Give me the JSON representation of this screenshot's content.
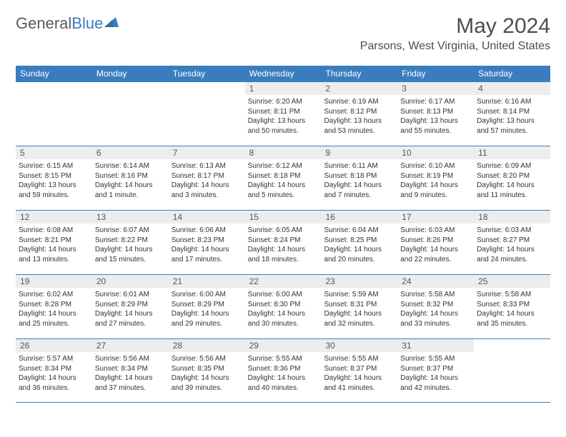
{
  "logo": {
    "text1": "General",
    "text2": "Blue",
    "shape_color": "#3a7dbf"
  },
  "title": "May 2024",
  "location": "Parsons, West Virginia, United States",
  "colors": {
    "header_bg": "#3a7dbf",
    "border": "#3a7dbf",
    "daynum_bg": "#ededed",
    "text": "#333333"
  },
  "day_names": [
    "Sunday",
    "Monday",
    "Tuesday",
    "Wednesday",
    "Thursday",
    "Friday",
    "Saturday"
  ],
  "weeks": [
    [
      {
        "empty": true
      },
      {
        "empty": true
      },
      {
        "empty": true
      },
      {
        "n": "1",
        "sr": "Sunrise: 6:20 AM",
        "ss": "Sunset: 8:11 PM",
        "dl": "Daylight: 13 hours and 50 minutes."
      },
      {
        "n": "2",
        "sr": "Sunrise: 6:19 AM",
        "ss": "Sunset: 8:12 PM",
        "dl": "Daylight: 13 hours and 53 minutes."
      },
      {
        "n": "3",
        "sr": "Sunrise: 6:17 AM",
        "ss": "Sunset: 8:13 PM",
        "dl": "Daylight: 13 hours and 55 minutes."
      },
      {
        "n": "4",
        "sr": "Sunrise: 6:16 AM",
        "ss": "Sunset: 8:14 PM",
        "dl": "Daylight: 13 hours and 57 minutes."
      }
    ],
    [
      {
        "n": "5",
        "sr": "Sunrise: 6:15 AM",
        "ss": "Sunset: 8:15 PM",
        "dl": "Daylight: 13 hours and 59 minutes."
      },
      {
        "n": "6",
        "sr": "Sunrise: 6:14 AM",
        "ss": "Sunset: 8:16 PM",
        "dl": "Daylight: 14 hours and 1 minute."
      },
      {
        "n": "7",
        "sr": "Sunrise: 6:13 AM",
        "ss": "Sunset: 8:17 PM",
        "dl": "Daylight: 14 hours and 3 minutes."
      },
      {
        "n": "8",
        "sr": "Sunrise: 6:12 AM",
        "ss": "Sunset: 8:18 PM",
        "dl": "Daylight: 14 hours and 5 minutes."
      },
      {
        "n": "9",
        "sr": "Sunrise: 6:11 AM",
        "ss": "Sunset: 8:18 PM",
        "dl": "Daylight: 14 hours and 7 minutes."
      },
      {
        "n": "10",
        "sr": "Sunrise: 6:10 AM",
        "ss": "Sunset: 8:19 PM",
        "dl": "Daylight: 14 hours and 9 minutes."
      },
      {
        "n": "11",
        "sr": "Sunrise: 6:09 AM",
        "ss": "Sunset: 8:20 PM",
        "dl": "Daylight: 14 hours and 11 minutes."
      }
    ],
    [
      {
        "n": "12",
        "sr": "Sunrise: 6:08 AM",
        "ss": "Sunset: 8:21 PM",
        "dl": "Daylight: 14 hours and 13 minutes."
      },
      {
        "n": "13",
        "sr": "Sunrise: 6:07 AM",
        "ss": "Sunset: 8:22 PM",
        "dl": "Daylight: 14 hours and 15 minutes."
      },
      {
        "n": "14",
        "sr": "Sunrise: 6:06 AM",
        "ss": "Sunset: 8:23 PM",
        "dl": "Daylight: 14 hours and 17 minutes."
      },
      {
        "n": "15",
        "sr": "Sunrise: 6:05 AM",
        "ss": "Sunset: 8:24 PM",
        "dl": "Daylight: 14 hours and 18 minutes."
      },
      {
        "n": "16",
        "sr": "Sunrise: 6:04 AM",
        "ss": "Sunset: 8:25 PM",
        "dl": "Daylight: 14 hours and 20 minutes."
      },
      {
        "n": "17",
        "sr": "Sunrise: 6:03 AM",
        "ss": "Sunset: 8:26 PM",
        "dl": "Daylight: 14 hours and 22 minutes."
      },
      {
        "n": "18",
        "sr": "Sunrise: 6:03 AM",
        "ss": "Sunset: 8:27 PM",
        "dl": "Daylight: 14 hours and 24 minutes."
      }
    ],
    [
      {
        "n": "19",
        "sr": "Sunrise: 6:02 AM",
        "ss": "Sunset: 8:28 PM",
        "dl": "Daylight: 14 hours and 25 minutes."
      },
      {
        "n": "20",
        "sr": "Sunrise: 6:01 AM",
        "ss": "Sunset: 8:29 PM",
        "dl": "Daylight: 14 hours and 27 minutes."
      },
      {
        "n": "21",
        "sr": "Sunrise: 6:00 AM",
        "ss": "Sunset: 8:29 PM",
        "dl": "Daylight: 14 hours and 29 minutes."
      },
      {
        "n": "22",
        "sr": "Sunrise: 6:00 AM",
        "ss": "Sunset: 8:30 PM",
        "dl": "Daylight: 14 hours and 30 minutes."
      },
      {
        "n": "23",
        "sr": "Sunrise: 5:59 AM",
        "ss": "Sunset: 8:31 PM",
        "dl": "Daylight: 14 hours and 32 minutes."
      },
      {
        "n": "24",
        "sr": "Sunrise: 5:58 AM",
        "ss": "Sunset: 8:32 PM",
        "dl": "Daylight: 14 hours and 33 minutes."
      },
      {
        "n": "25",
        "sr": "Sunrise: 5:58 AM",
        "ss": "Sunset: 8:33 PM",
        "dl": "Daylight: 14 hours and 35 minutes."
      }
    ],
    [
      {
        "n": "26",
        "sr": "Sunrise: 5:57 AM",
        "ss": "Sunset: 8:34 PM",
        "dl": "Daylight: 14 hours and 36 minutes."
      },
      {
        "n": "27",
        "sr": "Sunrise: 5:56 AM",
        "ss": "Sunset: 8:34 PM",
        "dl": "Daylight: 14 hours and 37 minutes."
      },
      {
        "n": "28",
        "sr": "Sunrise: 5:56 AM",
        "ss": "Sunset: 8:35 PM",
        "dl": "Daylight: 14 hours and 39 minutes."
      },
      {
        "n": "29",
        "sr": "Sunrise: 5:55 AM",
        "ss": "Sunset: 8:36 PM",
        "dl": "Daylight: 14 hours and 40 minutes."
      },
      {
        "n": "30",
        "sr": "Sunrise: 5:55 AM",
        "ss": "Sunset: 8:37 PM",
        "dl": "Daylight: 14 hours and 41 minutes."
      },
      {
        "n": "31",
        "sr": "Sunrise: 5:55 AM",
        "ss": "Sunset: 8:37 PM",
        "dl": "Daylight: 14 hours and 42 minutes."
      },
      {
        "empty": true
      }
    ]
  ]
}
